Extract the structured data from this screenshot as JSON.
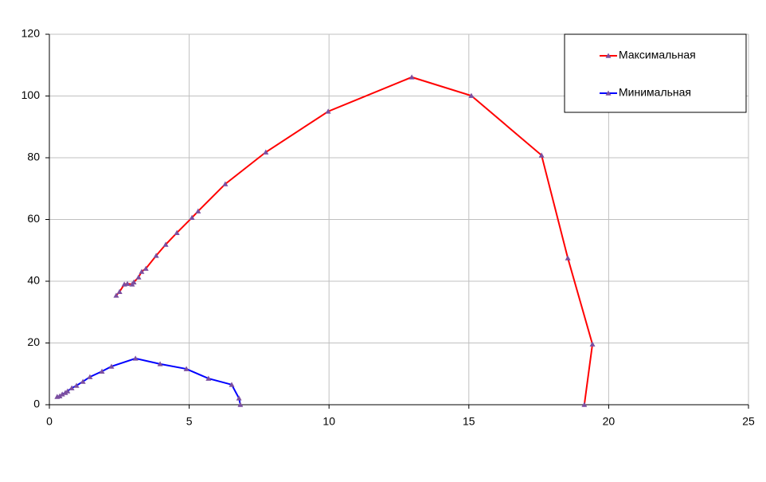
{
  "chart_data": {
    "type": "line",
    "xlim": [
      0,
      25
    ],
    "xticks": [
      0,
      5,
      10,
      15,
      20,
      25
    ],
    "ylim": [
      0,
      120
    ],
    "yticks": [
      0,
      20,
      40,
      60,
      80,
      100,
      120
    ],
    "grid": true,
    "legend_position": "top-right",
    "marker_color": "#7b4fa0",
    "series": [
      {
        "name": "Максимальная",
        "color": "#ff0000",
        "x": [
          2.39,
          2.51,
          2.68,
          2.79,
          2.96,
          3.02,
          3.19,
          3.3,
          3.45,
          3.82,
          4.16,
          4.56,
          5.1,
          5.32,
          6.29,
          7.74,
          9.97,
          12.96,
          15.09,
          17.6,
          18.54,
          19.42,
          19.13
        ],
        "values": [
          35.4,
          36.6,
          39.0,
          39.2,
          39.0,
          39.7,
          41.3,
          43.1,
          44.1,
          48.3,
          51.9,
          55.7,
          60.6,
          62.7,
          71.5,
          81.8,
          95,
          106.1,
          100.1,
          80.8,
          47.5,
          19.6,
          0
        ]
      },
      {
        "name": "Минимальная",
        "color": "#0000ff",
        "x": [
          0.28,
          0.37,
          0.46,
          0.57,
          0.65,
          0.8,
          0.97,
          1.2,
          1.45,
          1.88,
          2.22,
          3.08,
          3.96,
          4.9,
          5.69,
          6.52,
          6.78,
          6.83
        ],
        "values": [
          2.6,
          2.8,
          3.4,
          3.9,
          4.4,
          5.4,
          6.2,
          7.5,
          9.0,
          10.8,
          12.4,
          15.0,
          13.2,
          11.6,
          8.5,
          6.5,
          2.1,
          0
        ]
      }
    ]
  }
}
